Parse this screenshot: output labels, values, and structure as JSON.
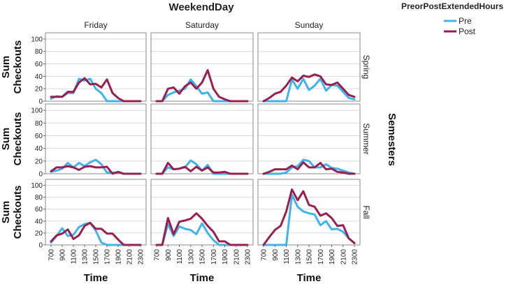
{
  "chart_data": {
    "type": "line",
    "title": "WeekendDay",
    "columns": [
      "Friday",
      "Saturday",
      "Sunday"
    ],
    "row_title": "Semesters",
    "rows": [
      "Spring",
      "Summer",
      "Fall"
    ],
    "xlabel": "Time",
    "ylabel": "Sum Checkouts",
    "ylabel_lines": [
      "Sum",
      "Checkouts"
    ],
    "x": [
      700,
      800,
      900,
      1000,
      1100,
      1200,
      1300,
      1400,
      1500,
      1600,
      1700,
      1800,
      1900,
      2000,
      2100,
      2200,
      2300
    ],
    "x_tick_labels": [
      "700",
      "900",
      "1100",
      "1300",
      "1500",
      "1700",
      "1900",
      "2100",
      "2300"
    ],
    "ylim": [
      0,
      110
    ],
    "y_ticks": [
      0,
      20,
      40,
      60,
      80,
      100
    ],
    "legend": {
      "title": "PreorPostExtendedHours",
      "entries": [
        {
          "name": "Pre",
          "color": "#3fb3ee"
        },
        {
          "name": "Post",
          "color": "#9b1f4e"
        }
      ]
    },
    "panels": [
      {
        "row": "Spring",
        "column": "Friday",
        "series": [
          {
            "name": "Pre",
            "values": [
              4,
              8,
              7,
              13,
              13,
              36,
              33,
              36,
              20,
              13,
              0,
              0,
              0,
              0,
              0,
              0,
              0
            ]
          },
          {
            "name": "Post",
            "values": [
              7,
              7,
              7,
              15,
              15,
              30,
              37,
              27,
              28,
              22,
              35,
              13,
              5,
              0,
              0,
              0,
              0
            ]
          }
        ]
      },
      {
        "row": "Spring",
        "column": "Saturday",
        "series": [
          {
            "name": "Pre",
            "values": [
              0,
              0,
              10,
              14,
              17,
              20,
              35,
              24,
              12,
              14,
              0,
              0,
              0,
              0,
              0,
              0,
              0
            ]
          },
          {
            "name": "Post",
            "values": [
              0,
              0,
              20,
              22,
              12,
              24,
              30,
              20,
              30,
              50,
              20,
              7,
              3,
              0,
              0,
              0,
              0
            ]
          }
        ]
      },
      {
        "row": "Spring",
        "column": "Sunday",
        "series": [
          {
            "name": "Pre",
            "values": [
              0,
              0,
              0,
              0,
              0,
              35,
              20,
              36,
              18,
              25,
              36,
              17,
              26,
              25,
              15,
              5,
              3
            ]
          },
          {
            "name": "Post",
            "values": [
              0,
              5,
              12,
              15,
              25,
              38,
              32,
              41,
              39,
              43,
              40,
              27,
              26,
              30,
              20,
              10,
              7
            ]
          }
        ]
      },
      {
        "row": "Summer",
        "column": "Friday",
        "series": [
          {
            "name": "Pre",
            "values": [
              3,
              5,
              8,
              17,
              10,
              17,
              12,
              18,
              22,
              15,
              2,
              2,
              2,
              0,
              0,
              0,
              0
            ]
          },
          {
            "name": "Post",
            "values": [
              4,
              10,
              10,
              12,
              10,
              6,
              11,
              12,
              10,
              10,
              11,
              0,
              3,
              0,
              0,
              0,
              0
            ]
          }
        ]
      },
      {
        "row": "Summer",
        "column": "Saturday",
        "series": [
          {
            "name": "Pre",
            "values": [
              0,
              0,
              10,
              7,
              8,
              10,
              21,
              15,
              5,
              14,
              0,
              0,
              0,
              0,
              0,
              0,
              0
            ]
          },
          {
            "name": "Post",
            "values": [
              0,
              0,
              17,
              7,
              8,
              11,
              4,
              11,
              5,
              10,
              2,
              2,
              3,
              0,
              0,
              0,
              0
            ]
          }
        ]
      },
      {
        "row": "Summer",
        "column": "Sunday",
        "series": [
          {
            "name": "Pre",
            "values": [
              0,
              0,
              0,
              0,
              2,
              10,
              12,
              22,
              20,
              10,
              10,
              15,
              9,
              8,
              5,
              2,
              0
            ]
          },
          {
            "name": "Post",
            "values": [
              0,
              3,
              7,
              7,
              7,
              13,
              7,
              18,
              10,
              10,
              17,
              7,
              8,
              3,
              2,
              0,
              0
            ]
          }
        ]
      },
      {
        "row": "Fall",
        "column": "Friday",
        "series": [
          {
            "name": "Pre",
            "values": [
              4,
              15,
              28,
              15,
              17,
              30,
              35,
              37,
              24,
              4,
              0,
              0,
              0,
              0,
              0,
              0,
              0
            ]
          },
          {
            "name": "Post",
            "values": [
              6,
              16,
              19,
              26,
              10,
              16,
              32,
              37,
              27,
              27,
              19,
              19,
              9,
              0,
              0,
              0,
              0
            ]
          }
        ]
      },
      {
        "row": "Fall",
        "column": "Saturday",
        "series": [
          {
            "name": "Pre",
            "values": [
              0,
              0,
              35,
              15,
              31,
              27,
              25,
              18,
              36,
              20,
              8,
              0,
              0,
              0,
              0,
              0,
              0
            ]
          },
          {
            "name": "Post",
            "values": [
              0,
              0,
              45,
              18,
              39,
              41,
              44,
              53,
              44,
              32,
              22,
              6,
              6,
              0,
              0,
              0,
              0
            ]
          }
        ]
      },
      {
        "row": "Fall",
        "column": "Sunday",
        "series": [
          {
            "name": "Pre",
            "values": [
              0,
              0,
              0,
              0,
              0,
              84,
              64,
              56,
              53,
              51,
              33,
              40,
              26,
              27,
              22,
              11,
              3
            ]
          },
          {
            "name": "Post",
            "values": [
              0,
              13,
              25,
              32,
              56,
              93,
              75,
              90,
              67,
              64,
              49,
              53,
              45,
              32,
              33,
              11,
              3
            ]
          }
        ]
      }
    ]
  }
}
